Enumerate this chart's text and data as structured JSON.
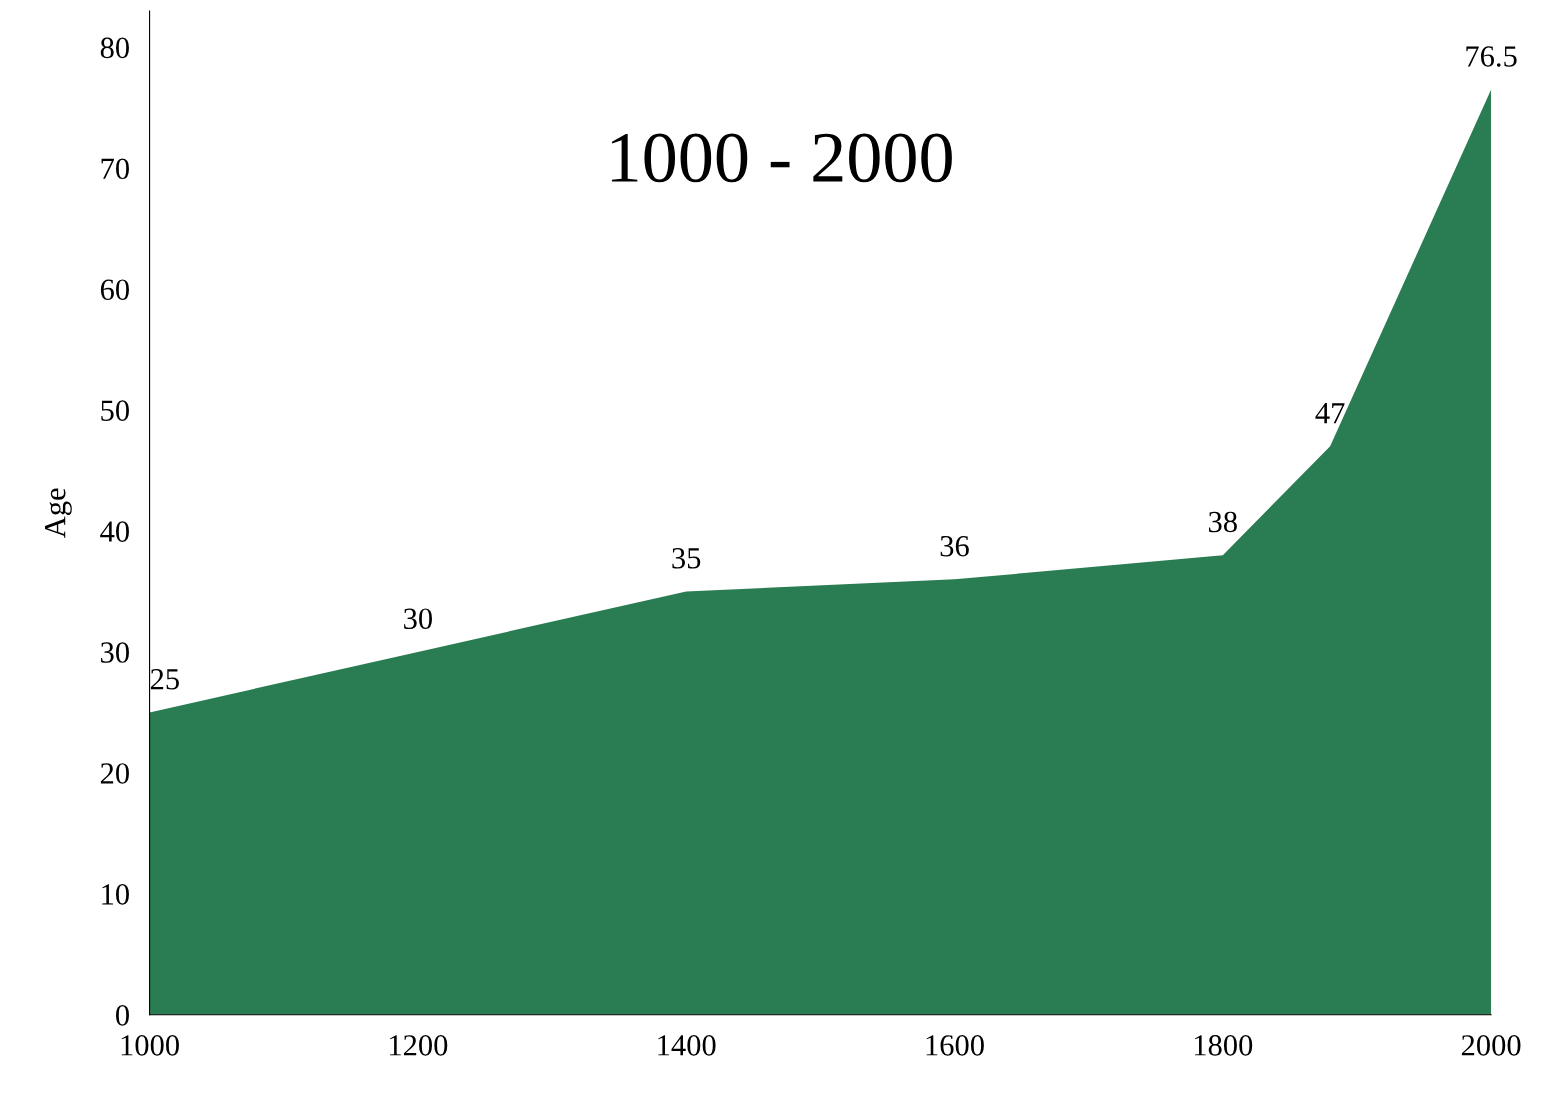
{
  "chart_data": {
    "type": "area",
    "title": "1000 - 2000",
    "ylabel": "Age",
    "x": [
      1000,
      1200,
      1400,
      1600,
      1800,
      1880,
      2000
    ],
    "series": [
      {
        "color": "#2a7d52",
        "values": [
          25,
          30,
          35,
          36,
          38,
          47,
          76.5
        ]
      }
    ],
    "data_labels": true,
    "xlim": [
      1000,
      2000
    ],
    "xticks": [
      1000,
      1200,
      1400,
      1600,
      1800,
      2000
    ],
    "ylim": [
      0,
      83
    ],
    "yticks": [
      0,
      10,
      20,
      30,
      40,
      50,
      60,
      70,
      80
    ],
    "grid": false,
    "legend": false
  }
}
